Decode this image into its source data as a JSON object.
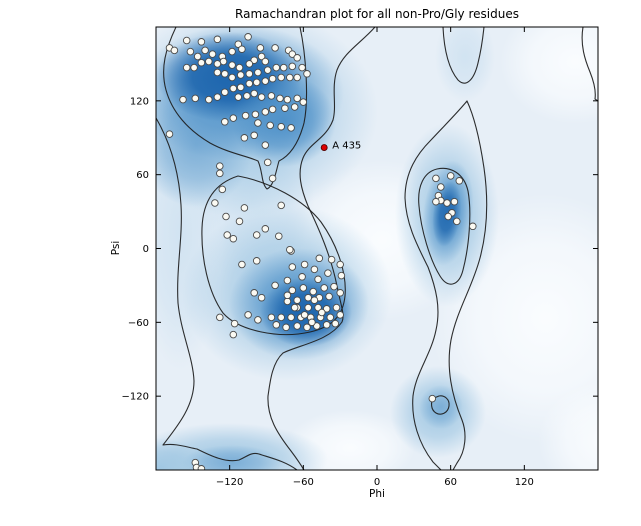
{
  "figure": {
    "title": "Ramachandran plot for all non-Pro/Gly residues"
  },
  "chart_data": {
    "type": "scatter",
    "title": "Ramachandran plot for all non-Pro/Gly residues",
    "xlabel": "Phi",
    "ylabel": "Psi",
    "xlim": [
      -180,
      180
    ],
    "ylim": [
      -180,
      180
    ],
    "x_ticks": [
      -120,
      -60,
      0,
      60,
      120
    ],
    "y_ticks": [
      120,
      60,
      0,
      -60,
      -120
    ],
    "grid": false,
    "legend": "none",
    "background": "blue kernel-density shading with black contour outlines marking favored/allowed regions",
    "series": [
      {
        "name": "residues",
        "marker": "circle",
        "fill": "#fbfaf3",
        "edge": "#4a4a4a",
        "points": [
          [
            -155,
            169
          ],
          [
            -143,
            168
          ],
          [
            -130,
            170
          ],
          [
            -113,
            166
          ],
          [
            -105,
            172
          ],
          [
            -169,
            163
          ],
          [
            -165,
            161
          ],
          [
            -152,
            160
          ],
          [
            -140,
            161
          ],
          [
            -146,
            156
          ],
          [
            -134,
            158
          ],
          [
            -126,
            156
          ],
          [
            -118,
            160
          ],
          [
            -110,
            162
          ],
          [
            -95,
            163
          ],
          [
            -94,
            156
          ],
          [
            -83,
            163
          ],
          [
            -72,
            161
          ],
          [
            -69,
            158
          ],
          [
            -65,
            155
          ],
          [
            -100,
            153
          ],
          [
            -91,
            152
          ],
          [
            -104,
            150
          ],
          [
            -112,
            147
          ],
          [
            -118,
            149
          ],
          [
            -125,
            152
          ],
          [
            -130,
            150
          ],
          [
            -137,
            152
          ],
          [
            -143,
            151
          ],
          [
            -149,
            147
          ],
          [
            -155,
            147
          ],
          [
            -130,
            143
          ],
          [
            -124,
            142
          ],
          [
            -118,
            139
          ],
          [
            -111,
            141
          ],
          [
            -104,
            142
          ],
          [
            -97,
            143
          ],
          [
            -89,
            145
          ],
          [
            -82,
            147
          ],
          [
            -76,
            147
          ],
          [
            -69,
            148
          ],
          [
            -61,
            147
          ],
          [
            -57,
            142
          ],
          [
            -65,
            139
          ],
          [
            -71,
            139
          ],
          [
            -78,
            139
          ],
          [
            -85,
            138
          ],
          [
            -91,
            136
          ],
          [
            -98,
            135
          ],
          [
            -104,
            134
          ],
          [
            -111,
            131
          ],
          [
            -117,
            130
          ],
          [
            -124,
            127
          ],
          [
            -130,
            123
          ],
          [
            -137,
            121
          ],
          [
            -148,
            122
          ],
          [
            -158,
            121
          ],
          [
            -113,
            123
          ],
          [
            -106,
            124
          ],
          [
            -100,
            126
          ],
          [
            -94,
            123
          ],
          [
            -86,
            124
          ],
          [
            -79,
            122
          ],
          [
            -73,
            121
          ],
          [
            -65,
            122
          ],
          [
            -60,
            119
          ],
          [
            -67,
            115
          ],
          [
            -75,
            114
          ],
          [
            -85,
            113
          ],
          [
            -91,
            111
          ],
          [
            -99,
            109
          ],
          [
            -107,
            108
          ],
          [
            -117,
            106
          ],
          [
            -124,
            103
          ],
          [
            -97,
            102
          ],
          [
            -87,
            100
          ],
          [
            -78,
            99
          ],
          [
            -70,
            98
          ],
          [
            -100,
            92
          ],
          [
            -108,
            90
          ],
          [
            -169,
            93
          ],
          [
            -91,
            84
          ],
          [
            -89,
            70
          ],
          [
            -128,
            67
          ],
          [
            -128,
            61
          ],
          [
            -85,
            57
          ],
          [
            -126,
            48
          ],
          [
            -132,
            37
          ],
          [
            -108,
            33
          ],
          [
            -78,
            35
          ],
          [
            -123,
            26
          ],
          [
            -112,
            22
          ],
          [
            -122,
            11
          ],
          [
            -117,
            8
          ],
          [
            -98,
            11
          ],
          [
            -91,
            16
          ],
          [
            -80,
            10
          ],
          [
            -70,
            -2
          ],
          [
            -47,
            -8
          ],
          [
            -37,
            -9
          ],
          [
            -30,
            -13
          ],
          [
            -110,
            -13
          ],
          [
            -98,
            -10
          ],
          [
            -69,
            -15
          ],
          [
            -59,
            -13
          ],
          [
            -51,
            -17
          ],
          [
            -29,
            -22
          ],
          [
            -40,
            -20
          ],
          [
            -48,
            -25
          ],
          [
            -61,
            -23
          ],
          [
            -73,
            -26
          ],
          [
            -83,
            -30
          ],
          [
            -100,
            -36
          ],
          [
            -94,
            -40
          ],
          [
            -69,
            -34
          ],
          [
            -60,
            -32
          ],
          [
            -52,
            -35
          ],
          [
            -43,
            -32
          ],
          [
            -35,
            -31
          ],
          [
            -30,
            -36
          ],
          [
            -39,
            -39
          ],
          [
            -47,
            -40
          ],
          [
            -56,
            -40
          ],
          [
            -65,
            -42
          ],
          [
            -73,
            -43
          ],
          [
            -65,
            -48
          ],
          [
            -56,
            -48
          ],
          [
            -48,
            -48
          ],
          [
            -41,
            -49
          ],
          [
            -33,
            -48
          ],
          [
            -30,
            -54
          ],
          [
            -38,
            -56
          ],
          [
            -46,
            -56
          ],
          [
            -54,
            -56
          ],
          [
            -62,
            -56
          ],
          [
            -70,
            -56
          ],
          [
            -78,
            -56
          ],
          [
            -86,
            -56
          ],
          [
            -82,
            -62
          ],
          [
            -74,
            -64
          ],
          [
            -65,
            -63
          ],
          [
            -57,
            -64
          ],
          [
            -49,
            -63
          ],
          [
            -41,
            -62
          ],
          [
            -34,
            -61
          ],
          [
            -97,
            -58
          ],
          [
            -105,
            -54
          ],
          [
            -128,
            -56
          ],
          [
            -116,
            -61
          ],
          [
            -117,
            -70
          ],
          [
            -71,
            -1
          ],
          [
            -51,
            -42
          ],
          [
            -45,
            -52
          ],
          [
            -53,
            -60
          ],
          [
            -59,
            -54
          ],
          [
            -67,
            -48
          ],
          [
            -73,
            -38
          ],
          [
            48,
            57
          ],
          [
            60,
            59
          ],
          [
            67,
            55
          ],
          [
            52,
            50
          ],
          [
            50,
            43
          ],
          [
            52,
            39
          ],
          [
            48,
            38
          ],
          [
            57,
            37
          ],
          [
            63,
            38
          ],
          [
            61,
            29
          ],
          [
            58,
            26
          ],
          [
            65,
            22
          ],
          [
            78,
            18
          ],
          [
            45,
            -122
          ],
          [
            -148,
            -174
          ],
          [
            -147,
            -178
          ],
          [
            -143,
            -179
          ]
        ]
      },
      {
        "name": "outlier",
        "marker": "circle",
        "fill": "#dd0000",
        "edge": "#550000",
        "annotation": "A 435",
        "points": [
          [
            -43,
            82
          ]
        ]
      }
    ]
  },
  "colors": {
    "deep_blue": "#1e66ae",
    "mid_blue": "#4d90c8",
    "light_blue": "#9ec6e2",
    "pale_blue": "#e7eff7",
    "contour": "#1c1c1c",
    "marker_fill": "#fbfaf3",
    "marker_edge": "#4a4a4a",
    "outlier_red": "#dd0000",
    "figure_bg": "#ffffff",
    "text": "#000000"
  }
}
